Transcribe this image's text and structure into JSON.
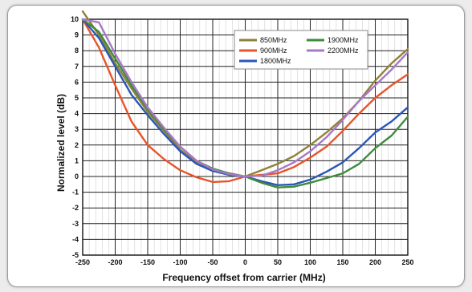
{
  "chart_data": {
    "type": "line",
    "title": "",
    "xlabel": "Frequency offset from carrier (MHz)",
    "ylabel": "Normalized level (dB)",
    "xlim": [
      -250,
      250
    ],
    "ylim": [
      -5,
      10
    ],
    "x_ticks": [
      -250,
      -200,
      -150,
      -100,
      -50,
      0,
      50,
      100,
      150,
      200,
      250
    ],
    "y_ticks": [
      -5,
      -4,
      -3,
      -2,
      -1,
      0,
      1,
      2,
      3,
      4,
      5,
      6,
      7,
      8,
      9,
      10
    ],
    "grid": true,
    "legend_position": "top-right",
    "x": [
      -250,
      -225,
      -200,
      -175,
      -150,
      -125,
      -100,
      -75,
      -50,
      -25,
      0,
      25,
      50,
      75,
      100,
      125,
      150,
      175,
      200,
      225,
      250
    ],
    "series": [
      {
        "name": "850MHz",
        "color": "#8f8237",
        "values": [
          10.5,
          9.0,
          7.2,
          5.6,
          4.1,
          2.9,
          1.7,
          0.9,
          0.45,
          0.2,
          0.0,
          0.4,
          0.8,
          1.3,
          2.0,
          2.8,
          3.7,
          4.8,
          6.1,
          7.2,
          8.1
        ]
      },
      {
        "name": "900MHz",
        "color": "#e8542a",
        "values": [
          10.0,
          8.2,
          5.8,
          3.5,
          2.0,
          1.1,
          0.4,
          -0.05,
          -0.35,
          -0.3,
          0.0,
          0.1,
          0.2,
          0.6,
          1.2,
          1.9,
          2.9,
          4.0,
          5.0,
          5.8,
          6.5
        ]
      },
      {
        "name": "1800MHz",
        "color": "#2a56b8",
        "values": [
          10.0,
          8.8,
          7.0,
          5.2,
          3.9,
          2.7,
          1.6,
          0.8,
          0.35,
          0.1,
          0.0,
          -0.3,
          -0.55,
          -0.5,
          -0.2,
          0.3,
          0.9,
          1.8,
          2.8,
          3.5,
          4.4
        ]
      },
      {
        "name": "1900MHz",
        "color": "#3e8b3e",
        "values": [
          10.0,
          9.2,
          7.5,
          5.8,
          4.3,
          3.0,
          1.9,
          1.0,
          0.5,
          0.2,
          0.0,
          -0.4,
          -0.7,
          -0.65,
          -0.4,
          -0.1,
          0.2,
          0.8,
          1.8,
          2.6,
          3.8
        ]
      },
      {
        "name": "2200MHz",
        "color": "#a878c8",
        "values": [
          10.0,
          9.8,
          7.8,
          6.0,
          4.4,
          3.1,
          1.9,
          1.0,
          0.45,
          0.15,
          0.0,
          0.05,
          0.4,
          0.9,
          1.6,
          2.5,
          3.6,
          4.8,
          5.8,
          6.8,
          7.9
        ]
      }
    ]
  }
}
